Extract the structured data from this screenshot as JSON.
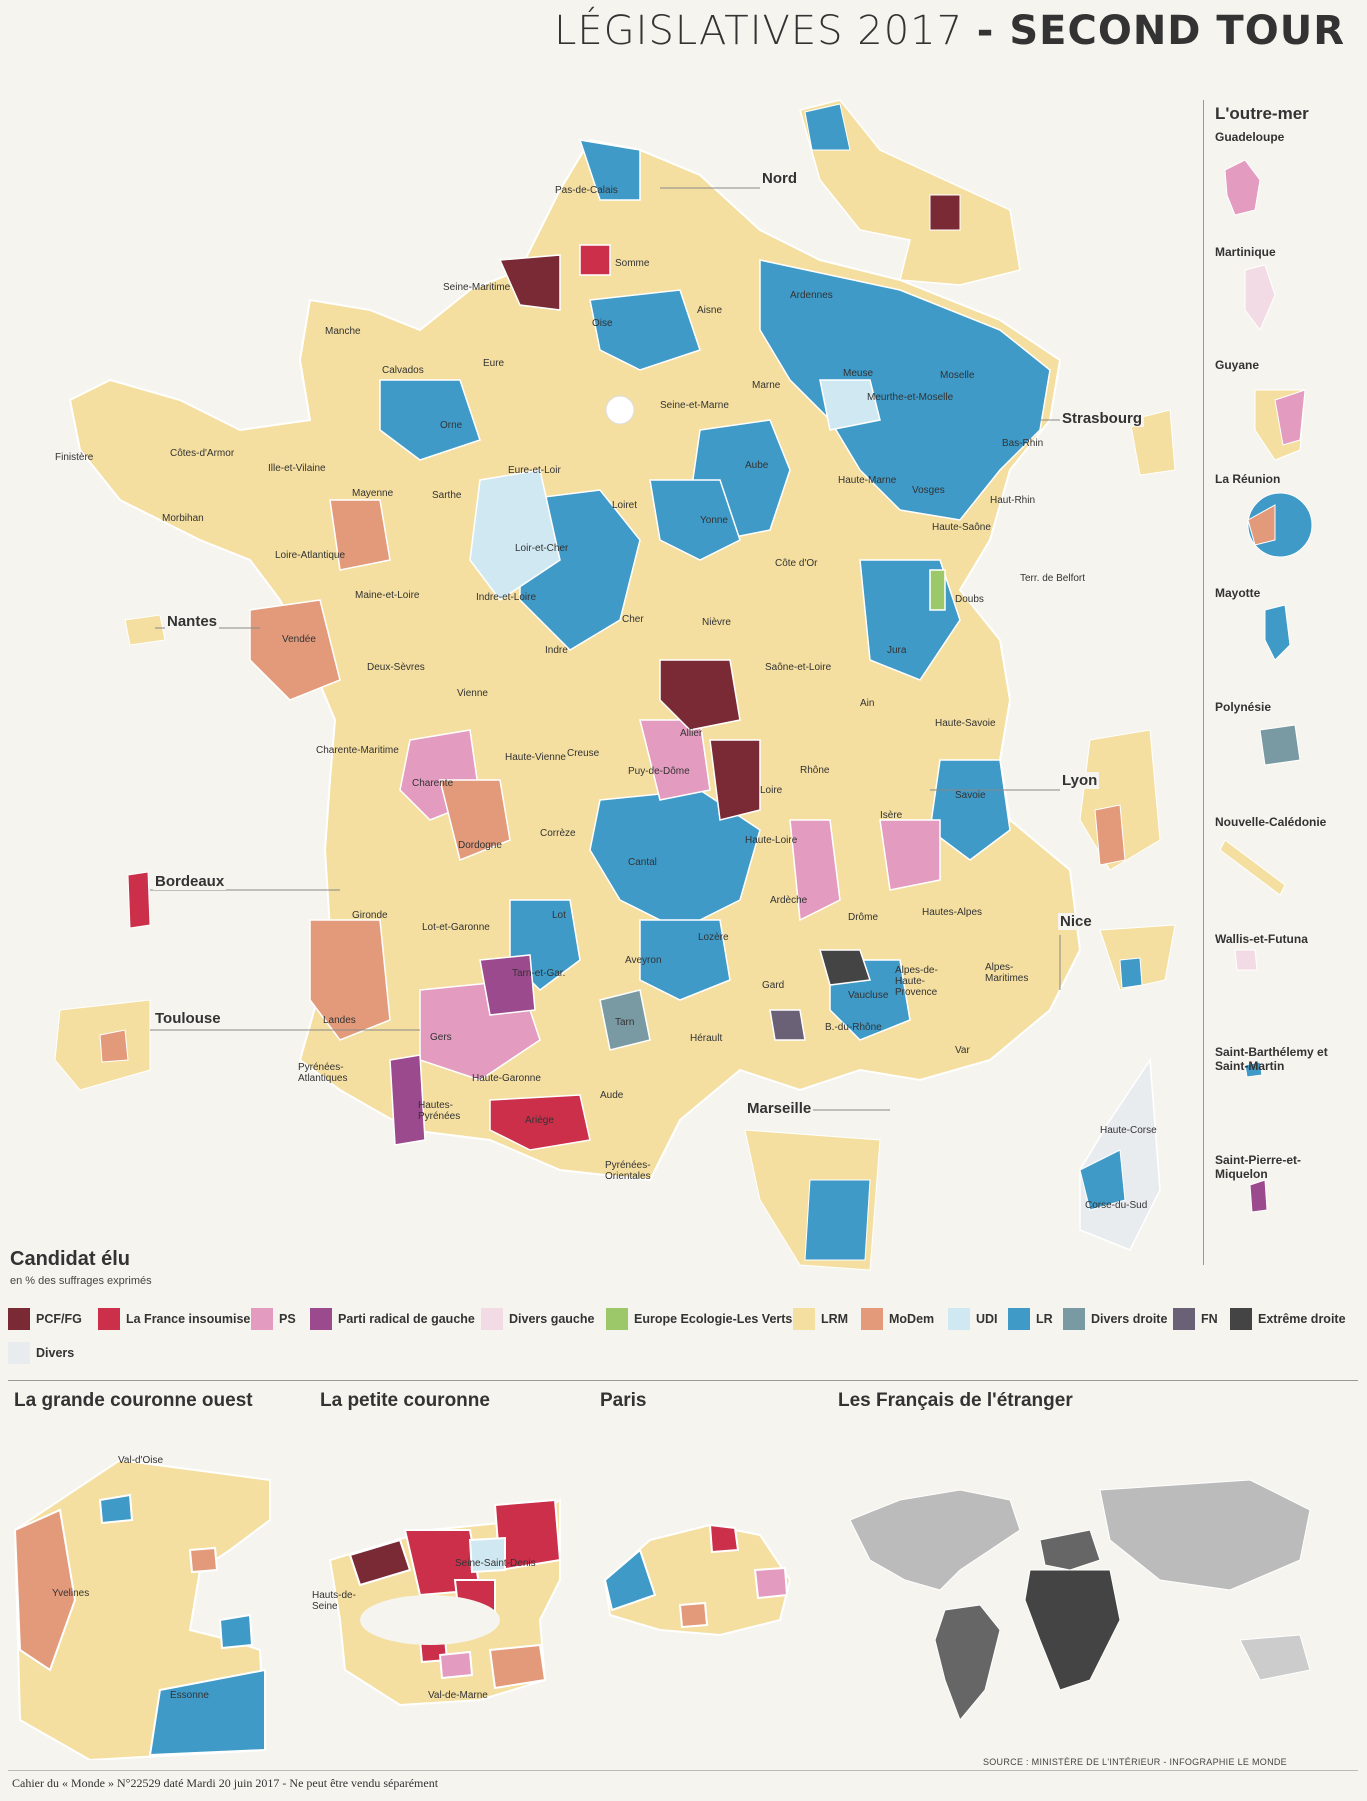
{
  "title": {
    "part1": "LÉGISLATIVES 2017",
    "part2": "- SECOND TOUR"
  },
  "cities": [
    "Nord",
    "Strasbourg",
    "Nantes",
    "Lyon",
    "Bordeaux",
    "Nice",
    "Toulouse",
    "Marseille"
  ],
  "departments": [
    "Pas-de-Calais",
    "Somme",
    "Seine-Maritime",
    "Aisne",
    "Oise",
    "Ardennes",
    "Manche",
    "Calvados",
    "Eure",
    "Seine-et-Marne",
    "Marne",
    "Meuse",
    "Moselle",
    "Meurthe-et-Moselle",
    "Bas-Rhin",
    "Finistère",
    "Côtes-d'Armor",
    "Ille-et-Vilaine",
    "Orne",
    "Mayenne",
    "Sarthe",
    "Eure-et-Loir",
    "Aube",
    "Haute-Marne",
    "Vosges",
    "Haut-Rhin",
    "Morbihan",
    "Loiret",
    "Yonne",
    "Loire-Atlantique",
    "Maine-et-Loire",
    "Loir-et-Cher",
    "Haute-Saône",
    "Indre-et-Loire",
    "Côte d'Or",
    "Terr. de Belfort",
    "Doubs",
    "Cher",
    "Nièvre",
    "Vendée",
    "Deux-Sèvres",
    "Indre",
    "Saône-et-Loire",
    "Jura",
    "Vienne",
    "Allier",
    "Ain",
    "Haute-Savoie",
    "Charente-Maritime",
    "Creuse",
    "Charente",
    "Haute-Vienne",
    "Puy-de-Dôme",
    "Loire",
    "Rhône",
    "Savoie",
    "Corrèze",
    "Haute-Loire",
    "Isère",
    "Dordogne",
    "Cantal",
    "Ardèche",
    "Drôme",
    "Hautes-Alpes",
    "Gironde",
    "Lot",
    "Lot-et-Garonne",
    "Lozère",
    "Aveyron",
    "Tarn-et-Gar.",
    "Gard",
    "Vaucluse",
    "Alpes-de-Haute-Provence",
    "Alpes-Maritimes",
    "Landes",
    "Gers",
    "Tarn",
    "Hérault",
    "B.-du-Rhône",
    "Var",
    "Pyrénées-Atlantiques",
    "Haute-Garonne",
    "Aude",
    "Hautes-Pyrénées",
    "Ariège",
    "Pyrénées-Orientales",
    "Haute-Corse",
    "Corse-du-Sud"
  ],
  "outremer": {
    "title": "L'outre-mer",
    "items": [
      "Guadeloupe",
      "Martinique",
      "Guyane",
      "La Réunion",
      "Mayotte",
      "Polynésie",
      "Nouvelle-Calédonie",
      "Wallis-et-Futuna",
      "Saint-Barthélemy et Saint-Martin",
      "Saint-Pierre-et-Miquelon"
    ]
  },
  "legend": {
    "title": "Candidat élu",
    "subtitle": "en % des suffrages exprimés",
    "items": [
      {
        "label": "PCF/FG",
        "color": "#7a2a35"
      },
      {
        "label": "La France insoumise",
        "color": "#cc2f4a"
      },
      {
        "label": "PS",
        "color": "#e39bbf"
      },
      {
        "label": "Parti radical de gauche",
        "color": "#9c4a8e"
      },
      {
        "label": "Divers gauche",
        "color": "#f3dbe6"
      },
      {
        "label": "Europe Ecologie-Les Verts",
        "color": "#9cc86a"
      },
      {
        "label": "LRM",
        "color": "#f4dfa0"
      },
      {
        "label": "MoDem",
        "color": "#e29a7b"
      },
      {
        "label": "UDI",
        "color": "#cfe8f1"
      },
      {
        "label": "LR",
        "color": "#3f9ac8"
      },
      {
        "label": "Divers droite",
        "color": "#7a9aa3"
      },
      {
        "label": "FN",
        "color": "#6b6176"
      },
      {
        "label": "Extrême droite",
        "color": "#444444"
      },
      {
        "label": "Divers",
        "color": "#e9ecef"
      }
    ]
  },
  "insets": {
    "grande_couronne": {
      "title": "La grande couronne ouest",
      "labels": [
        "Val-d'Oise",
        "Yvelines",
        "Essonne"
      ]
    },
    "petite_couronne": {
      "title": "La petite couronne",
      "labels": [
        "Seine-Saint-Denis",
        "Hauts-de-Seine",
        "Val-de-Marne"
      ]
    },
    "paris": {
      "title": "Paris"
    },
    "etranger": {
      "title": "Les Français de l'étranger"
    }
  },
  "source": "SOURCE : MINISTÈRE DE L'INTÉRIEUR - INFOGRAPHIE LE MONDE",
  "footer": "Cahier du « Monde » N°22529 daté Mardi 20 juin 2017 - Ne peut être vendu séparément"
}
